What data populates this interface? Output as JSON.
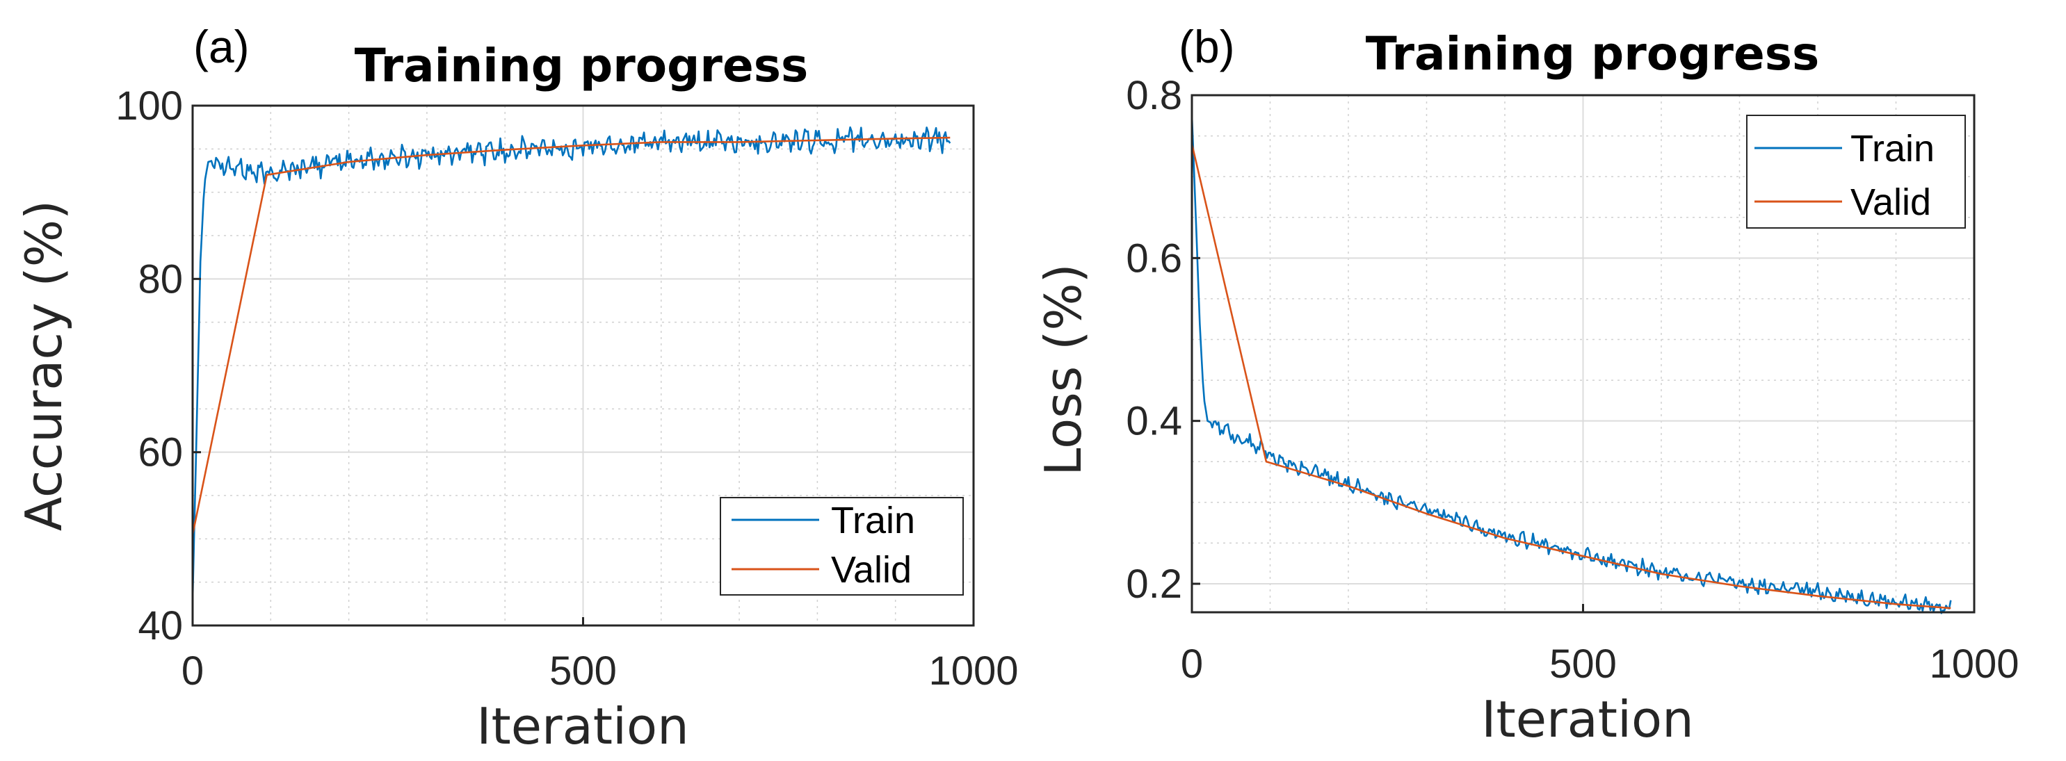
{
  "chart_data": [
    {
      "type": "line",
      "panel_label": "(a)",
      "title": "Training progress",
      "xlabel": "Iteration",
      "ylabel": "Accuracy (%)",
      "xlim": [
        0,
        1000
      ],
      "ylim": [
        40,
        100
      ],
      "xticks": [
        0,
        500,
        1000
      ],
      "yticks": [
        40,
        60,
        80,
        100
      ],
      "grid": true,
      "legend_position": "bottom-right",
      "series": [
        {
          "name": "Train",
          "color": "#0072BD",
          "noise": 1.0,
          "x": [
            0,
            5,
            10,
            15,
            20,
            30,
            50,
            70,
            90,
            100,
            150,
            200,
            300,
            400,
            500,
            600,
            700,
            800,
            900,
            970
          ],
          "y": [
            43,
            62,
            82,
            91,
            93.5,
            93.8,
            93.0,
            92.5,
            92.0,
            92.3,
            93.0,
            93.6,
            94.3,
            94.8,
            95.3,
            95.7,
            95.8,
            95.9,
            96.0,
            96.0
          ]
        },
        {
          "name": "Valid",
          "color": "#D95319",
          "noise": 0,
          "x": [
            0,
            95,
            200,
            300,
            400,
            500,
            600,
            700,
            800,
            900,
            970
          ],
          "y": [
            50.5,
            92.0,
            93.5,
            94.3,
            94.9,
            95.4,
            95.8,
            95.8,
            96.0,
            96.2,
            96.3
          ]
        }
      ]
    },
    {
      "type": "line",
      "panel_label": "(b)",
      "title": "Training progress",
      "xlabel": "Iteration",
      "ylabel": "Loss (%)",
      "xlim": [
        0,
        1000
      ],
      "ylim": [
        0.165,
        0.8
      ],
      "xticks": [
        0,
        500,
        1000
      ],
      "yticks": [
        0.2,
        0.4,
        0.6,
        0.8
      ],
      "grid": true,
      "legend_position": "top-right",
      "series": [
        {
          "name": "Train",
          "color": "#0072BD",
          "noise": 0.007,
          "x": [
            0,
            5,
            10,
            15,
            20,
            30,
            50,
            70,
            90,
            100,
            150,
            200,
            300,
            400,
            500,
            600,
            700,
            800,
            900,
            970
          ],
          "y": [
            0.775,
            0.65,
            0.52,
            0.43,
            0.4,
            0.395,
            0.385,
            0.375,
            0.365,
            0.355,
            0.34,
            0.322,
            0.29,
            0.26,
            0.235,
            0.215,
            0.2,
            0.19,
            0.177,
            0.172
          ]
        },
        {
          "name": "Valid",
          "color": "#D95319",
          "noise": 0,
          "x": [
            0,
            95,
            200,
            300,
            400,
            500,
            600,
            700,
            800,
            900,
            970
          ],
          "y": [
            0.74,
            0.35,
            0.32,
            0.286,
            0.256,
            0.234,
            0.212,
            0.197,
            0.185,
            0.175,
            0.17
          ]
        }
      ]
    }
  ]
}
